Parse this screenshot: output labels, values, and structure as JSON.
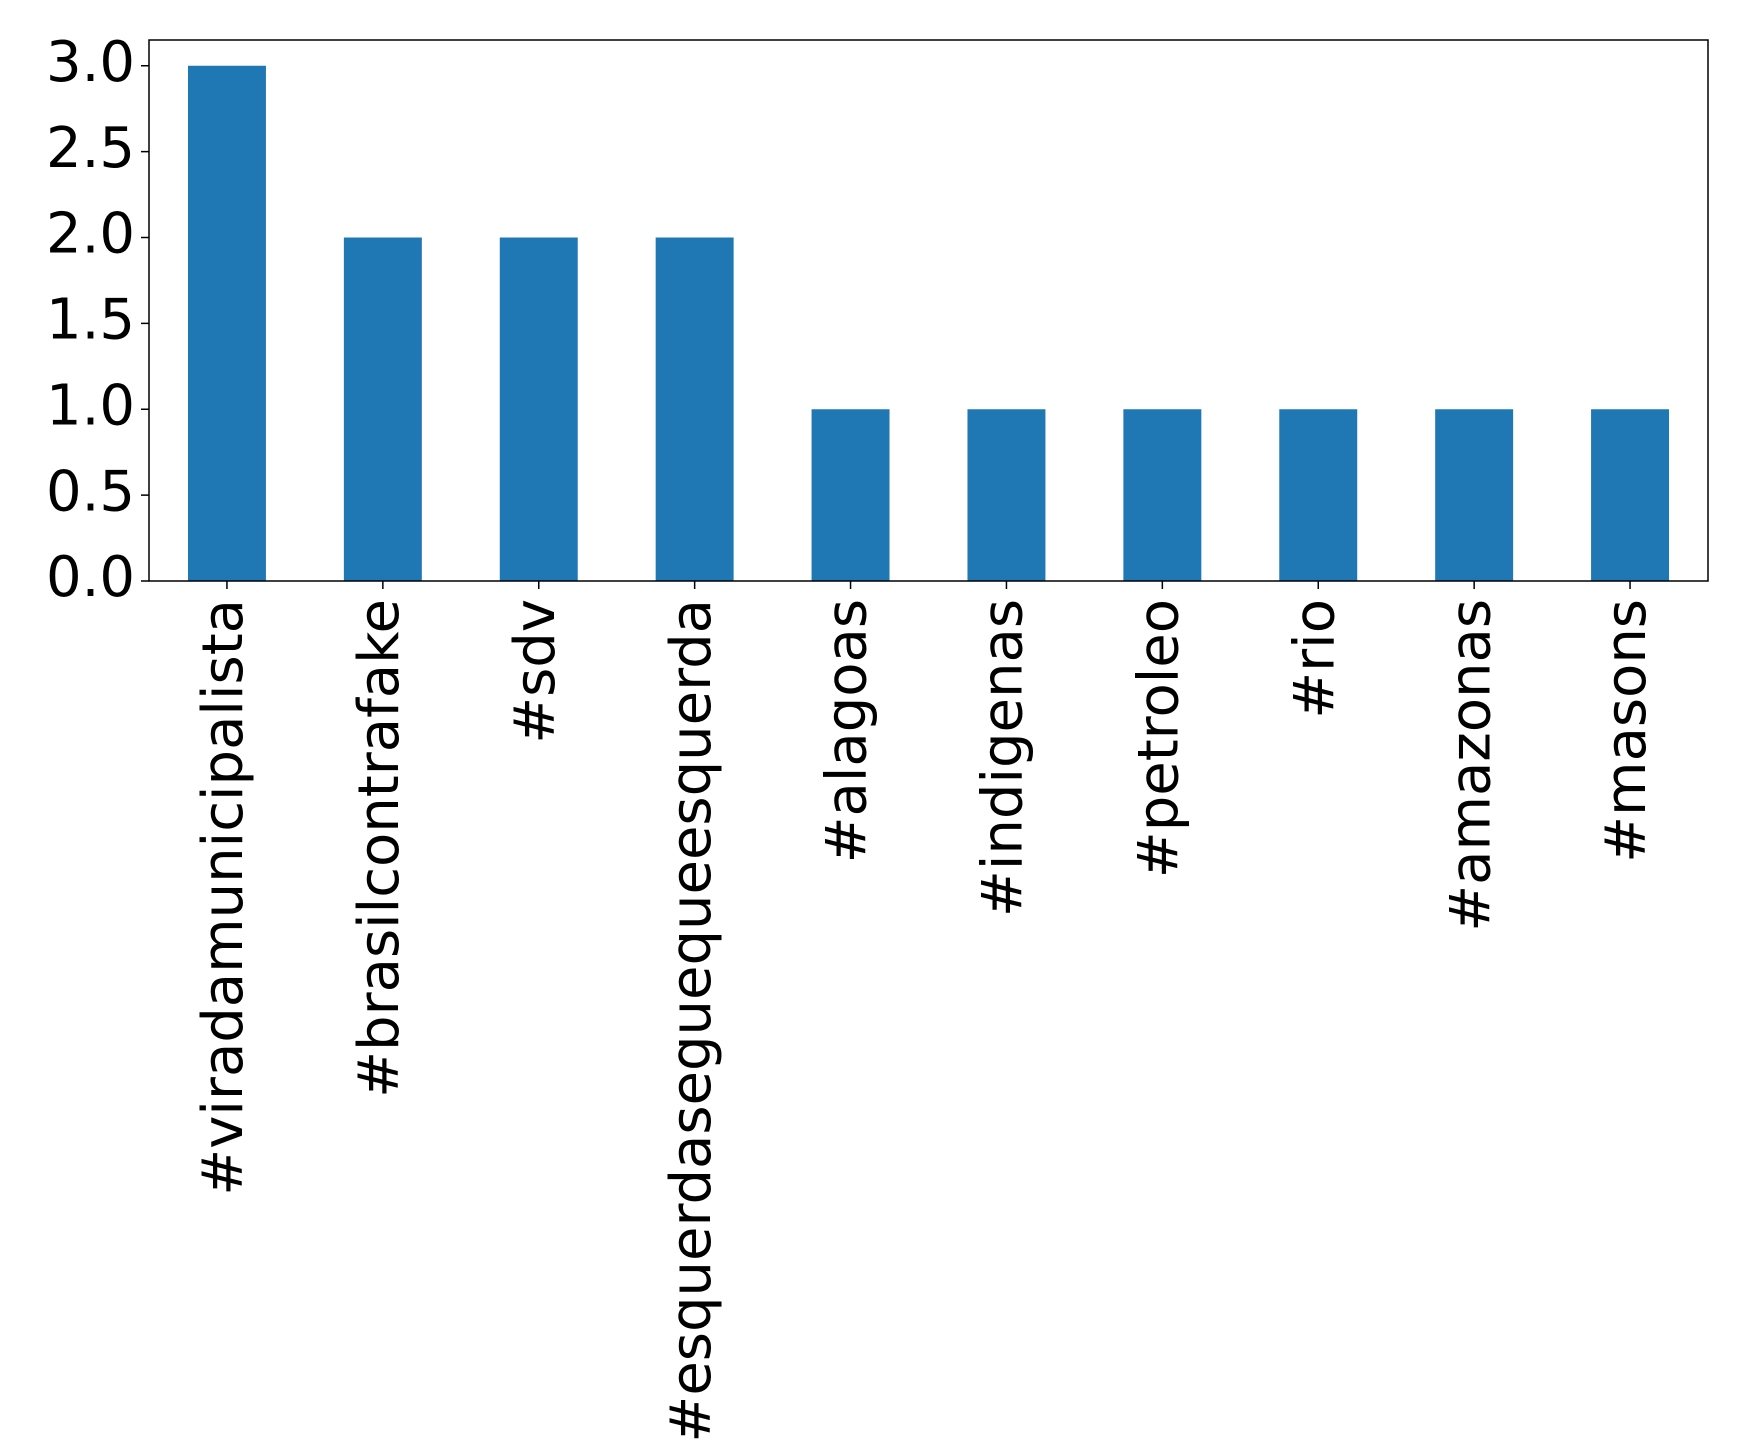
{
  "chart_data": {
    "type": "bar",
    "categories": [
      "#viradamunicipalista",
      "#brasilcontrafake",
      "#sdv",
      "#esquerdaseguequeesquerda",
      "#alagoas",
      "#indigenas",
      "#petroleo",
      "#rio",
      "#amazonas",
      "#masons"
    ],
    "values": [
      3,
      2,
      2,
      2,
      1,
      1,
      1,
      1,
      1,
      1
    ],
    "color": "#1f77b4",
    "ylim": [
      0,
      3.15
    ],
    "yticks": [
      {
        "value": 0,
        "label": "0.0"
      },
      0.5,
      {
        "value": 1,
        "label": "1.0"
      },
      1.5,
      {
        "value": 2,
        "label": "2.0"
      },
      2.5,
      {
        "value": 3,
        "label": "3.0"
      }
    ],
    "grid": false
  }
}
